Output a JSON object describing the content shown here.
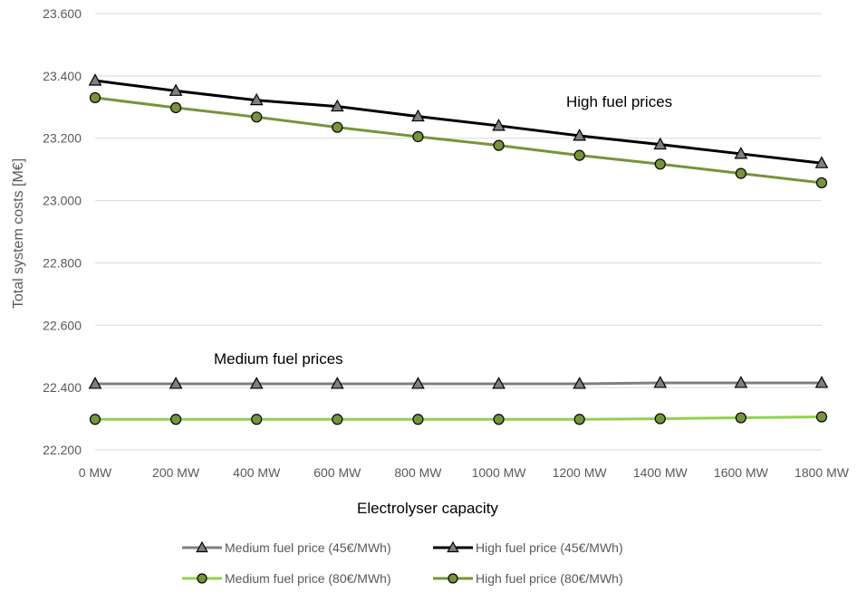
{
  "chart_data": {
    "type": "line",
    "title": "",
    "xlabel": "Electrolyser capacity",
    "ylabel": "Total system costs [M€]",
    "categories": [
      "0 MW",
      "200 MW",
      "400 MW",
      "600 MW",
      "800 MW",
      "1000 MW",
      "1200 MW",
      "1400 MW",
      "1600 MW",
      "1800 MW"
    ],
    "yticks": [
      "22.200",
      "22.400",
      "22.600",
      "22.800",
      "23.000",
      "23.200",
      "23.400",
      "23.600"
    ],
    "ylim": [
      22.2,
      23.6
    ],
    "grid": true,
    "legend_position": "bottom",
    "series": [
      {
        "name": "Medium fuel price (45€/MWh)",
        "line_color": "#7f7f7f",
        "marker": "triangle",
        "marker_fill": "#7f7f7f",
        "values": [
          22.412,
          22.412,
          22.412,
          22.412,
          22.412,
          22.412,
          22.412,
          22.415,
          22.415,
          22.415
        ]
      },
      {
        "name": "High fuel price (45€/MWh)",
        "line_color": "#000000",
        "marker": "triangle",
        "marker_fill": "#7f7f7f",
        "values": [
          23.385,
          23.352,
          23.322,
          23.302,
          23.27,
          23.24,
          23.208,
          23.18,
          23.15,
          23.12
        ]
      },
      {
        "name": "Medium fuel price (80€/MWh)",
        "line_color": "#92d050",
        "marker": "circle",
        "marker_fill": "#77933c",
        "values": [
          22.298,
          22.298,
          22.298,
          22.298,
          22.298,
          22.298,
          22.298,
          22.3,
          22.303,
          22.306
        ]
      },
      {
        "name": "High fuel price (80€/MWh)",
        "line_color": "#77933c",
        "marker": "circle",
        "marker_fill": "#77933c",
        "values": [
          23.33,
          23.298,
          23.268,
          23.235,
          23.205,
          23.177,
          23.145,
          23.117,
          23.087,
          23.057
        ]
      }
    ],
    "annotations": [
      {
        "text": "High fuel prices"
      },
      {
        "text": "Medium fuel prices"
      }
    ]
  }
}
